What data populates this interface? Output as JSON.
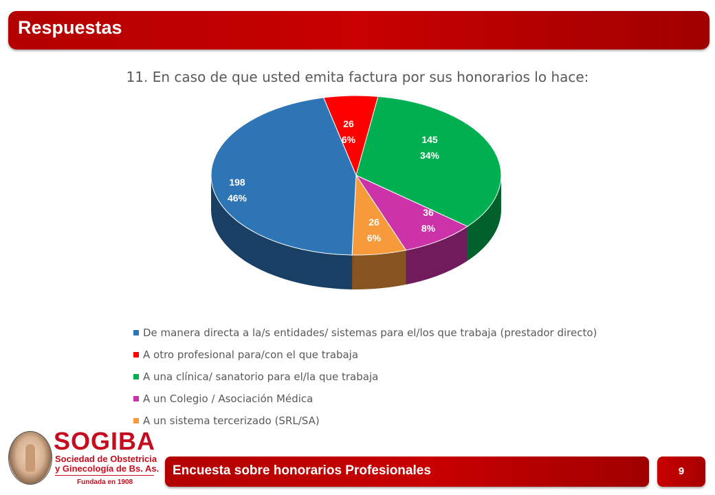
{
  "header": {
    "title": "Respuestas"
  },
  "chart_data": {
    "type": "pie",
    "title": "11. En caso de que usted  emita factura por sus honorarios lo hace:",
    "slices": [
      {
        "label": "De manera directa a la/s  entidades/ sistemas para el/los  que trabaja (prestador directo)",
        "value": 198,
        "percent_label": "46%",
        "color": "#2e75b6"
      },
      {
        "label": "A otro profesional para/con el que trabaja",
        "value": 26,
        "percent_label": "6%",
        "color": "#ff0000"
      },
      {
        "label": "A una clínica/ sanatorio para el/la que trabaja",
        "value": 145,
        "percent_label": "34%",
        "color": "#00b050"
      },
      {
        "label": "A un Colegio / Asociación Médica",
        "value": 36,
        "percent_label": "8%",
        "color": "#cc33a8"
      },
      {
        "label": "A un sistema tercerizado (SRL/SA)",
        "value": 26,
        "percent_label": "6%",
        "color": "#f79a3b"
      }
    ],
    "legend_position": "bottom"
  },
  "logo": {
    "name": "SOGIBA",
    "subtitle_line1": "Sociedad de Obstetricia",
    "subtitle_line2": "y Ginecología de Bs. As.",
    "founded": "Fundada en 1908"
  },
  "footer": {
    "title": "Encuesta sobre honorarios Profesionales",
    "page_number": "9"
  }
}
